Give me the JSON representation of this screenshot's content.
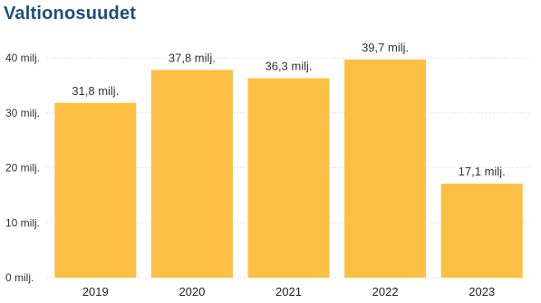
{
  "title": "Valtionosuudet",
  "chart_data": {
    "type": "bar",
    "title": "Valtionosuudet",
    "categories": [
      "2019",
      "2020",
      "2021",
      "2022",
      "2023"
    ],
    "values": [
      31.8,
      37.8,
      36.3,
      39.7,
      17.1
    ],
    "data_labels": [
      "31,8 milj.",
      "37,8 milj.",
      "36,3 milj.",
      "39,7 milj.",
      "17,1 milj."
    ],
    "y_ticks": [
      0,
      10,
      20,
      30,
      40
    ],
    "y_tick_labels": [
      "0 milj.",
      "10 milj.",
      "20 milj.",
      "30 milj.",
      "40 milj."
    ],
    "ylim": [
      0,
      45
    ],
    "grid": true,
    "bar_color": "#FDBF44",
    "grid_color": "#d8d8d8",
    "title_color": "#1f4e79"
  }
}
